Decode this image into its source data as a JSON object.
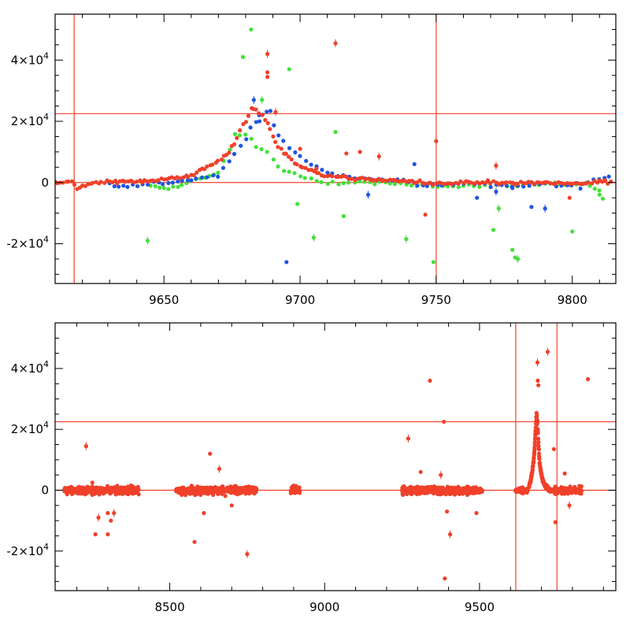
{
  "chart_data": [
    {
      "type": "scatter",
      "panel": "top",
      "title": "",
      "xlabel": "",
      "ylabel": "",
      "xlim": [
        9610,
        9816
      ],
      "ylim": [
        -33000,
        55000
      ],
      "xticks": [
        9650,
        9700,
        9750,
        9800
      ],
      "xtick_labels": [
        "9650",
        "9700",
        "9750",
        "9800"
      ],
      "yticks": [
        -20000,
        0,
        20000,
        40000
      ],
      "ytick_labels": [
        {
          "base": "-2×10",
          "exp": "4"
        },
        {
          "base": "0",
          "exp": ""
        },
        {
          "base": "2×10",
          "exp": "4"
        },
        {
          "base": "4×10",
          "exp": "4"
        }
      ],
      "hlines": [
        0,
        22500
      ],
      "vlines": [
        9617,
        9750
      ],
      "colors": {
        "red": "#f0402a",
        "green": "#44e03a",
        "blue": "#1f55e0",
        "line": "#f0402a",
        "axis": "#000000"
      },
      "series": [
        {
          "name": "green",
          "color": "#44e03a",
          "points": [
            [
              9645,
              -1200
            ],
            [
              9650,
              -2000
            ],
            [
              9655,
              -1500
            ],
            [
              9660,
              800
            ],
            [
              9665,
              1500
            ],
            [
              9670,
              3000
            ],
            [
              9676,
              15000
            ],
            [
              9680,
              16000
            ],
            [
              9684,
              12000
            ],
            [
              9688,
              10000
            ],
            [
              9692,
              5000
            ],
            [
              9700,
              2000
            ],
            [
              9708,
              -300
            ],
            [
              9720,
              100
            ],
            [
              9735,
              -500
            ],
            [
              9745,
              -700
            ],
            [
              9760,
              -1500
            ],
            [
              9770,
              -700
            ],
            [
              9780,
              -900
            ],
            [
              9790,
              -500
            ],
            [
              9805,
              -800
            ],
            [
              9810,
              -3000
            ],
            [
              9812,
              -8000
            ]
          ],
          "outliers": [
            [
              9644,
              -19000
            ],
            [
              9679,
              41000
            ],
            [
              9682,
              50000
            ],
            [
              9686,
              27000
            ],
            [
              9696,
              37000
            ],
            [
              9699,
              -7000
            ],
            [
              9705,
              -18000
            ],
            [
              9713,
              16500
            ],
            [
              9716,
              -11000
            ],
            [
              9739,
              -18500
            ],
            [
              9749,
              -26000
            ],
            [
              9771,
              -15500
            ],
            [
              9773,
              -8500
            ],
            [
              9778,
              -22000
            ],
            [
              9779,
              -24500
            ],
            [
              9780,
              -25000
            ],
            [
              9800,
              -16000
            ],
            [
              9810,
              -4000
            ]
          ]
        },
        {
          "name": "blue",
          "color": "#1f55e0",
          "points": [
            [
              9630,
              -500
            ],
            [
              9635,
              -1500
            ],
            [
              9640,
              -700
            ],
            [
              9648,
              -300
            ],
            [
              9655,
              500
            ],
            [
              9662,
              1200
            ],
            [
              9670,
              2500
            ],
            [
              9678,
              12000
            ],
            [
              9684,
              20000
            ],
            [
              9686,
              22000
            ],
            [
              9689,
              23000
            ],
            [
              9692,
              16000
            ],
            [
              9700,
              8000
            ],
            [
              9710,
              3000
            ],
            [
              9720,
              1500
            ],
            [
              9730,
              800
            ],
            [
              9740,
              600
            ],
            [
              9745,
              -1000
            ],
            [
              9752,
              -800
            ],
            [
              9760,
              -200
            ],
            [
              9770,
              -600
            ],
            [
              9780,
              -1200
            ],
            [
              9790,
              -400
            ],
            [
              9800,
              -700
            ],
            [
              9810,
              1000
            ],
            [
              9815,
              2000
            ]
          ],
          "outliers": [
            [
              9683,
              27000
            ],
            [
              9685,
              22000
            ],
            [
              9695,
              -26000
            ],
            [
              9725,
              -4000
            ],
            [
              9742,
              6000
            ],
            [
              9765,
              -5000
            ],
            [
              9772,
              -3000
            ],
            [
              9778,
              -1800
            ],
            [
              9785,
              -8000
            ],
            [
              9790,
              -8500
            ],
            [
              9803,
              -2000
            ]
          ]
        },
        {
          "name": "red",
          "color": "#f0402a",
          "points": [
            [
              9610,
              -200
            ],
            [
              9616,
              600
            ],
            [
              9618,
              -2000
            ],
            [
              9625,
              0
            ],
            [
              9632,
              200
            ],
            [
              9640,
              500
            ],
            [
              9648,
              800
            ],
            [
              9655,
              1500
            ],
            [
              9660,
              2500
            ],
            [
              9665,
              4500
            ],
            [
              9670,
              7000
            ],
            [
              9674,
              10000
            ],
            [
              9677,
              15000
            ],
            [
              9680,
              20000
            ],
            [
              9682,
              23000
            ],
            [
              9684,
              23500
            ],
            [
              9686,
              22000
            ],
            [
              9688,
              19000
            ],
            [
              9690,
              15000
            ],
            [
              9692,
              12000
            ],
            [
              9695,
              9000
            ],
            [
              9698,
              6500
            ],
            [
              9702,
              4500
            ],
            [
              9706,
              3200
            ],
            [
              9710,
              2400
            ],
            [
              9715,
              1800
            ],
            [
              9720,
              1300
            ],
            [
              9725,
              1000
            ],
            [
              9730,
              800
            ],
            [
              9735,
              600
            ],
            [
              9740,
              400
            ],
            [
              9745,
              200
            ],
            [
              9748,
              -500
            ],
            [
              9752,
              -400
            ],
            [
              9756,
              -300
            ],
            [
              9760,
              0
            ],
            [
              9765,
              -200
            ],
            [
              9770,
              100
            ],
            [
              9773,
              -700
            ],
            [
              9776,
              200
            ],
            [
              9780,
              -300
            ],
            [
              9785,
              0
            ],
            [
              9790,
              -400
            ],
            [
              9795,
              -200
            ],
            [
              9800,
              -500
            ],
            [
              9805,
              -100
            ],
            [
              9810,
              300
            ],
            [
              9815,
              0
            ]
          ],
          "outliers": [
            [
              9688,
              42000
            ],
            [
              9688,
              36000
            ],
            [
              9688,
              34500
            ],
            [
              9691,
              23000
            ],
            [
              9700,
              11000
            ],
            [
              9706,
              4500
            ],
            [
              9713,
              45500
            ],
            [
              9717,
              9500
            ],
            [
              9722,
              10000
            ],
            [
              9729,
              8500
            ],
            [
              9746,
              -10500
            ],
            [
              9750,
              13500
            ],
            [
              9772,
              5500
            ],
            [
              9799,
              -5000
            ]
          ]
        }
      ]
    },
    {
      "type": "scatter",
      "panel": "bottom",
      "title": "",
      "xlabel": "",
      "ylabel": "",
      "xlim": [
        8130,
        9940
      ],
      "ylim": [
        -33000,
        55000
      ],
      "xticks": [
        8500,
        9000,
        9500
      ],
      "xtick_labels": [
        "8500",
        "9000",
        "9500"
      ],
      "yticks": [
        -20000,
        0,
        20000,
        40000
      ],
      "ytick_labels": [
        {
          "base": "-2×10",
          "exp": "4"
        },
        {
          "base": "0",
          "exp": ""
        },
        {
          "base": "2×10",
          "exp": "4"
        },
        {
          "base": "4×10",
          "exp": "4"
        }
      ],
      "hlines": [
        0,
        22500
      ],
      "vlines": [
        9617,
        9750
      ],
      "clusters": [
        [
          8160,
          8400
        ],
        [
          8520,
          8780
        ],
        [
          8890,
          8920
        ],
        [
          9250,
          9510
        ],
        [
          9615,
          9690
        ],
        [
          9700,
          9830
        ]
      ],
      "series": [
        {
          "name": "red",
          "color": "#f0402a",
          "points": [
            [
              9660,
              1500
            ],
            [
              9665,
              3000
            ],
            [
              9670,
              6000
            ],
            [
              9675,
              10000
            ],
            [
              9678,
              14000
            ],
            [
              9680,
              18000
            ],
            [
              9682,
              22000
            ],
            [
              9684,
              24500
            ],
            [
              9686,
              23000
            ],
            [
              9688,
              20000
            ],
            [
              9690,
              16000
            ],
            [
              9692,
              12000
            ],
            [
              9695,
              8000
            ],
            [
              9700,
              5000
            ],
            [
              9705,
              3000
            ],
            [
              9710,
              2000
            ],
            [
              9715,
              1200
            ],
            [
              9720,
              800
            ]
          ],
          "outliers": [
            [
              8230,
              14500
            ],
            [
              8300,
              -7500
            ],
            [
              8310,
              -10000
            ],
            [
              8320,
              -7500
            ],
            [
              8260,
              -14500
            ],
            [
              8300,
              -14500
            ],
            [
              8270,
              -9000
            ],
            [
              8250,
              2500
            ],
            [
              8630,
              12000
            ],
            [
              8660,
              7000
            ],
            [
              8610,
              -7500
            ],
            [
              8580,
              -17000
            ],
            [
              8750,
              -21000
            ],
            [
              8700,
              -5000
            ],
            [
              8900,
              1500
            ],
            [
              9270,
              17000
            ],
            [
              9310,
              6000
            ],
            [
              9340,
              36000
            ],
            [
              9375,
              5000
            ],
            [
              9385,
              22500
            ],
            [
              9388,
              -29000
            ],
            [
              9405,
              -14500
            ],
            [
              9395,
              -7000
            ],
            [
              9490,
              -7500
            ],
            [
              9687,
              42000
            ],
            [
              9688,
              36000
            ],
            [
              9690,
              34500
            ],
            [
              9720,
              45500
            ],
            [
              9740,
              13500
            ],
            [
              9775,
              5500
            ],
            [
              9790,
              -5000
            ],
            [
              9745,
              -10500
            ],
            [
              9850,
              36500
            ]
          ]
        }
      ]
    }
  ]
}
